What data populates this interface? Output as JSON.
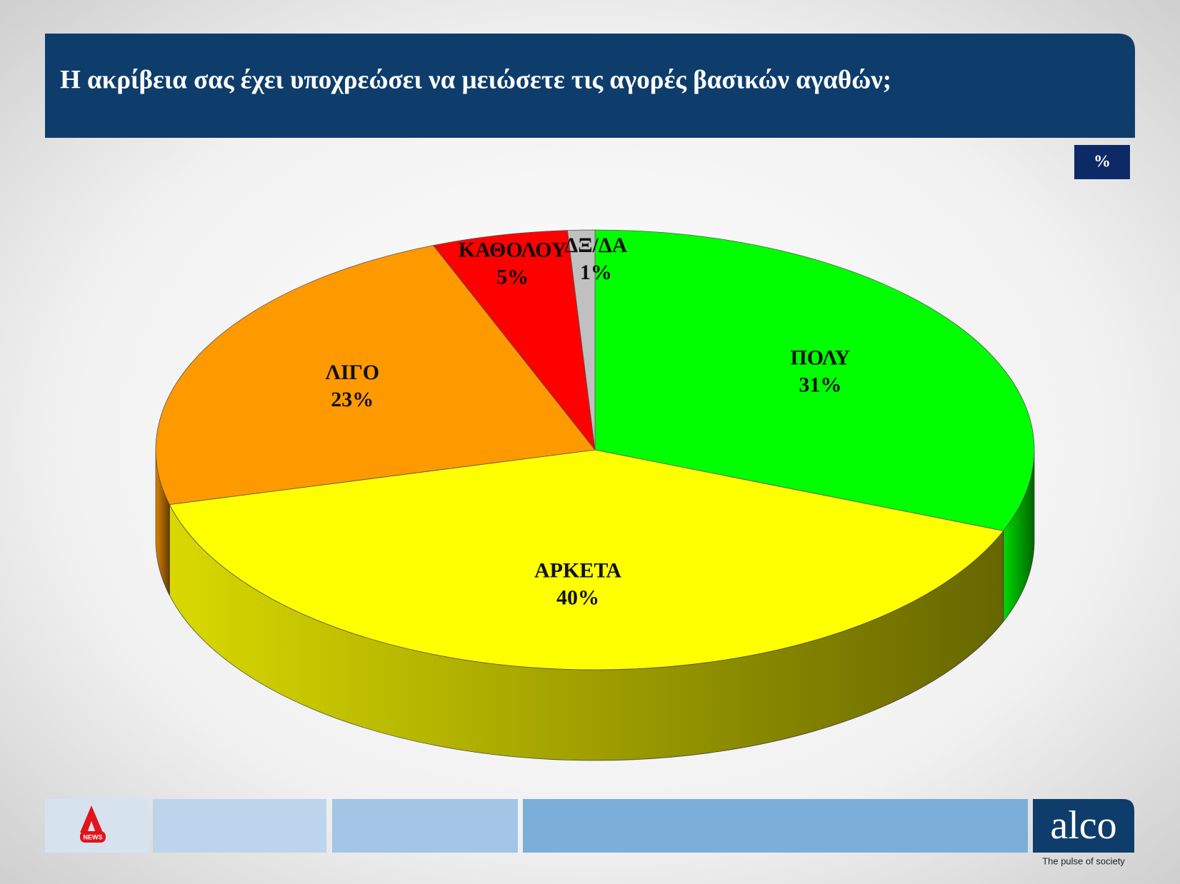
{
  "chart_data": {
    "type": "pie",
    "title": "Η ακρίβεια σας έχει υποχρεώσει να μειώσετε τις αγορές βασικών αγαθών;",
    "unit": "%",
    "categories": [
      "ΠΟΛΥ",
      "ΑΡΚΕΤΑ",
      "ΛΙΓΟ",
      "ΚΑΘΟΛΟΥ",
      "ΔΞ/ΔΑ"
    ],
    "values": [
      31,
      40,
      23,
      5,
      1
    ],
    "value_labels": [
      "31%",
      "40%",
      "23%",
      "5%",
      "1%"
    ],
    "colors": [
      "#00ff00",
      "#ffff00",
      "#ff9900",
      "#ff0000",
      "#c0c0c0"
    ]
  },
  "branding": {
    "news_logo": "NEWS",
    "logo": "alco",
    "tagline": "The pulse of society"
  }
}
